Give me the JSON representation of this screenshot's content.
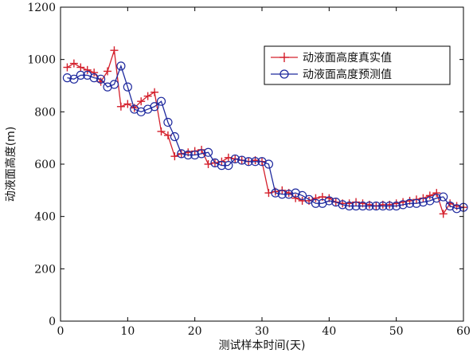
{
  "chart_data": {
    "type": "line",
    "xlabel": "测试样本时间(天)",
    "ylabel": "动液面高度(m)",
    "xlim": [
      0,
      60
    ],
    "ylim": [
      0,
      1200
    ],
    "xticks": [
      "0",
      "10",
      "20",
      "30",
      "40",
      "50",
      "60"
    ],
    "yticks": [
      "0",
      "200",
      "400",
      "600",
      "800",
      "1000",
      "1200"
    ],
    "grid": false,
    "legend_position": "top-right",
    "x": [
      1,
      2,
      3,
      4,
      5,
      6,
      7,
      8,
      9,
      10,
      11,
      12,
      13,
      14,
      15,
      16,
      17,
      18,
      19,
      20,
      21,
      22,
      23,
      24,
      25,
      26,
      27,
      28,
      29,
      30,
      31,
      32,
      33,
      34,
      35,
      36,
      37,
      38,
      39,
      40,
      41,
      42,
      43,
      44,
      45,
      46,
      47,
      48,
      49,
      50,
      51,
      52,
      53,
      54,
      55,
      56,
      57,
      58,
      59,
      60
    ],
    "series": [
      {
        "name": "动液面高度真实值",
        "color": "#d4202c",
        "marker": "plus",
        "values": [
          970,
          985,
          970,
          960,
          950,
          915,
          955,
          1035,
          820,
          830,
          815,
          840,
          860,
          875,
          725,
          710,
          630,
          640,
          645,
          650,
          655,
          600,
          605,
          610,
          625,
          620,
          615,
          610,
          615,
          610,
          490,
          495,
          500,
          490,
          470,
          460,
          460,
          470,
          475,
          470,
          455,
          450,
          450,
          455,
          450,
          445,
          440,
          445,
          445,
          450,
          455,
          460,
          465,
          470,
          480,
          490,
          410,
          450,
          440,
          435
        ]
      },
      {
        "name": "动液面高度预测值",
        "color": "#1f2a9e",
        "marker": "circle",
        "values": [
          930,
          925,
          940,
          940,
          930,
          925,
          895,
          905,
          975,
          895,
          810,
          800,
          810,
          820,
          840,
          760,
          705,
          640,
          635,
          635,
          640,
          645,
          605,
          595,
          595,
          620,
          615,
          610,
          610,
          610,
          600,
          490,
          485,
          485,
          490,
          480,
          465,
          450,
          450,
          460,
          455,
          445,
          440,
          440,
          440,
          440,
          440,
          440,
          440,
          440,
          445,
          450,
          450,
          455,
          460,
          470,
          475,
          440,
          430,
          435
        ]
      }
    ]
  }
}
